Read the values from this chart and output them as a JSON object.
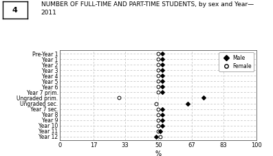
{
  "title": "NUMBER OF FULL-TIME AND PART-TIME STUDENTS, by sex and Year—\n2011",
  "figure_label": "4",
  "xlabel": "%",
  "xlim": [
    0,
    100
  ],
  "xticks": [
    0,
    17,
    33,
    50,
    67,
    83,
    100
  ],
  "categories": [
    "Pre-Year 1",
    "Year 1",
    "Year 2",
    "Year 3",
    "Year 4",
    "Year 5",
    "Year 6",
    "Year 7 prim.",
    "Ungraded prim.",
    "Ungraded sec.",
    "Year 7 sec.",
    "Year 8",
    "Year 9",
    "Year 10",
    "Year 11",
    "Year 12"
  ],
  "male_values": [
    52,
    52,
    52,
    52,
    52,
    52,
    52,
    52,
    73,
    65,
    52,
    52,
    52,
    52,
    51,
    49
  ],
  "female_values": [
    50,
    50,
    50,
    50,
    50,
    50,
    50,
    50,
    30,
    49,
    50,
    50,
    50,
    50,
    50,
    51
  ],
  "male_color": "#000000",
  "female_color": "#000000",
  "bg_color": "#ffffff",
  "grid_color": "#bbbbbb",
  "legend_male": "Male",
  "legend_female": "Female"
}
